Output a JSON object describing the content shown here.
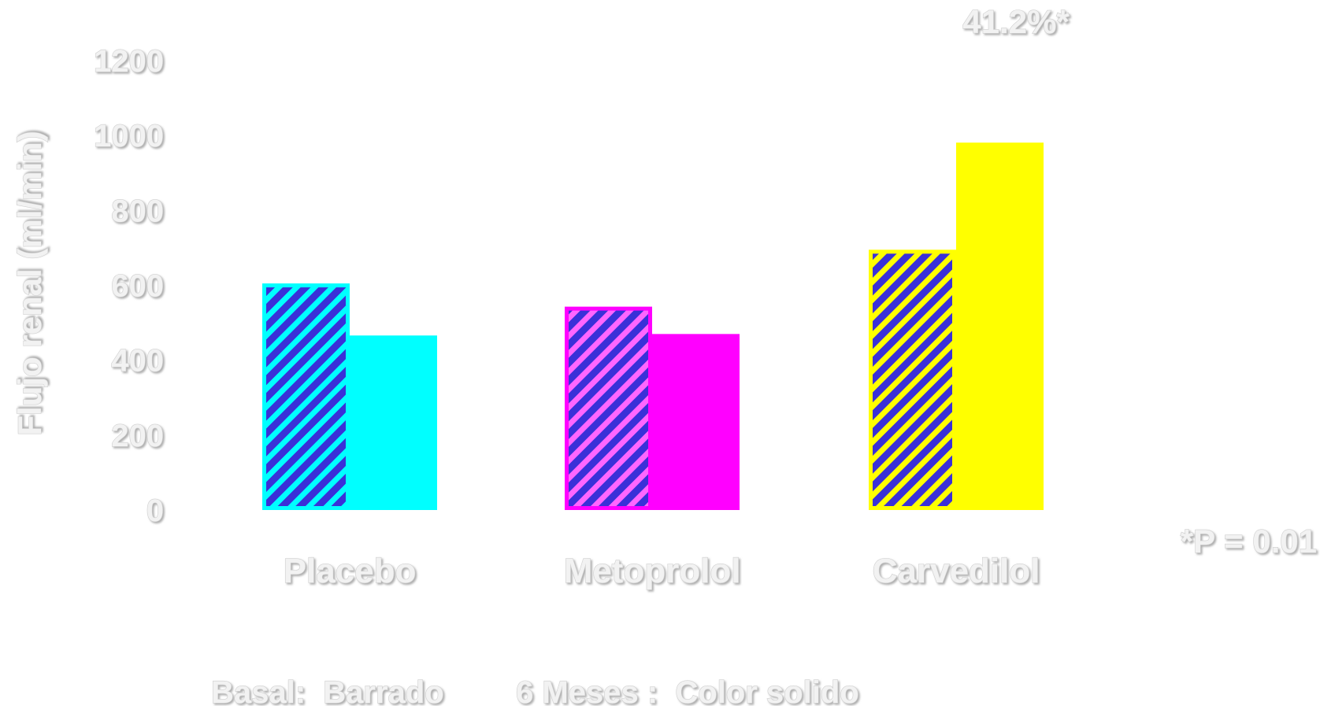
{
  "chart_data": {
    "type": "bar",
    "ylabel": "Flujo renal (ml/min)",
    "ylim": [
      0,
      1200
    ],
    "yticks": [
      "0",
      "200",
      "400",
      "600",
      "800",
      "1000",
      "1200"
    ],
    "categories": [
      "Placebo",
      "Metoprolol",
      "Carvedilol"
    ],
    "colors": [
      "#00ffff",
      "#ff00ff",
      "#ffff00"
    ],
    "hatch_color": "#3a30d8",
    "series": [
      {
        "name": "Basal",
        "style": "hatched",
        "values": [
          605,
          543,
          695
        ]
      },
      {
        "name": "6 Meses",
        "style": "solid",
        "values": [
          466,
          470,
          981
        ]
      }
    ],
    "annotations": {
      "percent": "41.2%*",
      "pvalue": "*P = 0.01"
    },
    "legend": {
      "basal": "Basal:  Barrado",
      "six_months": "6 Meses :  Color solido"
    },
    "grid": false
  }
}
